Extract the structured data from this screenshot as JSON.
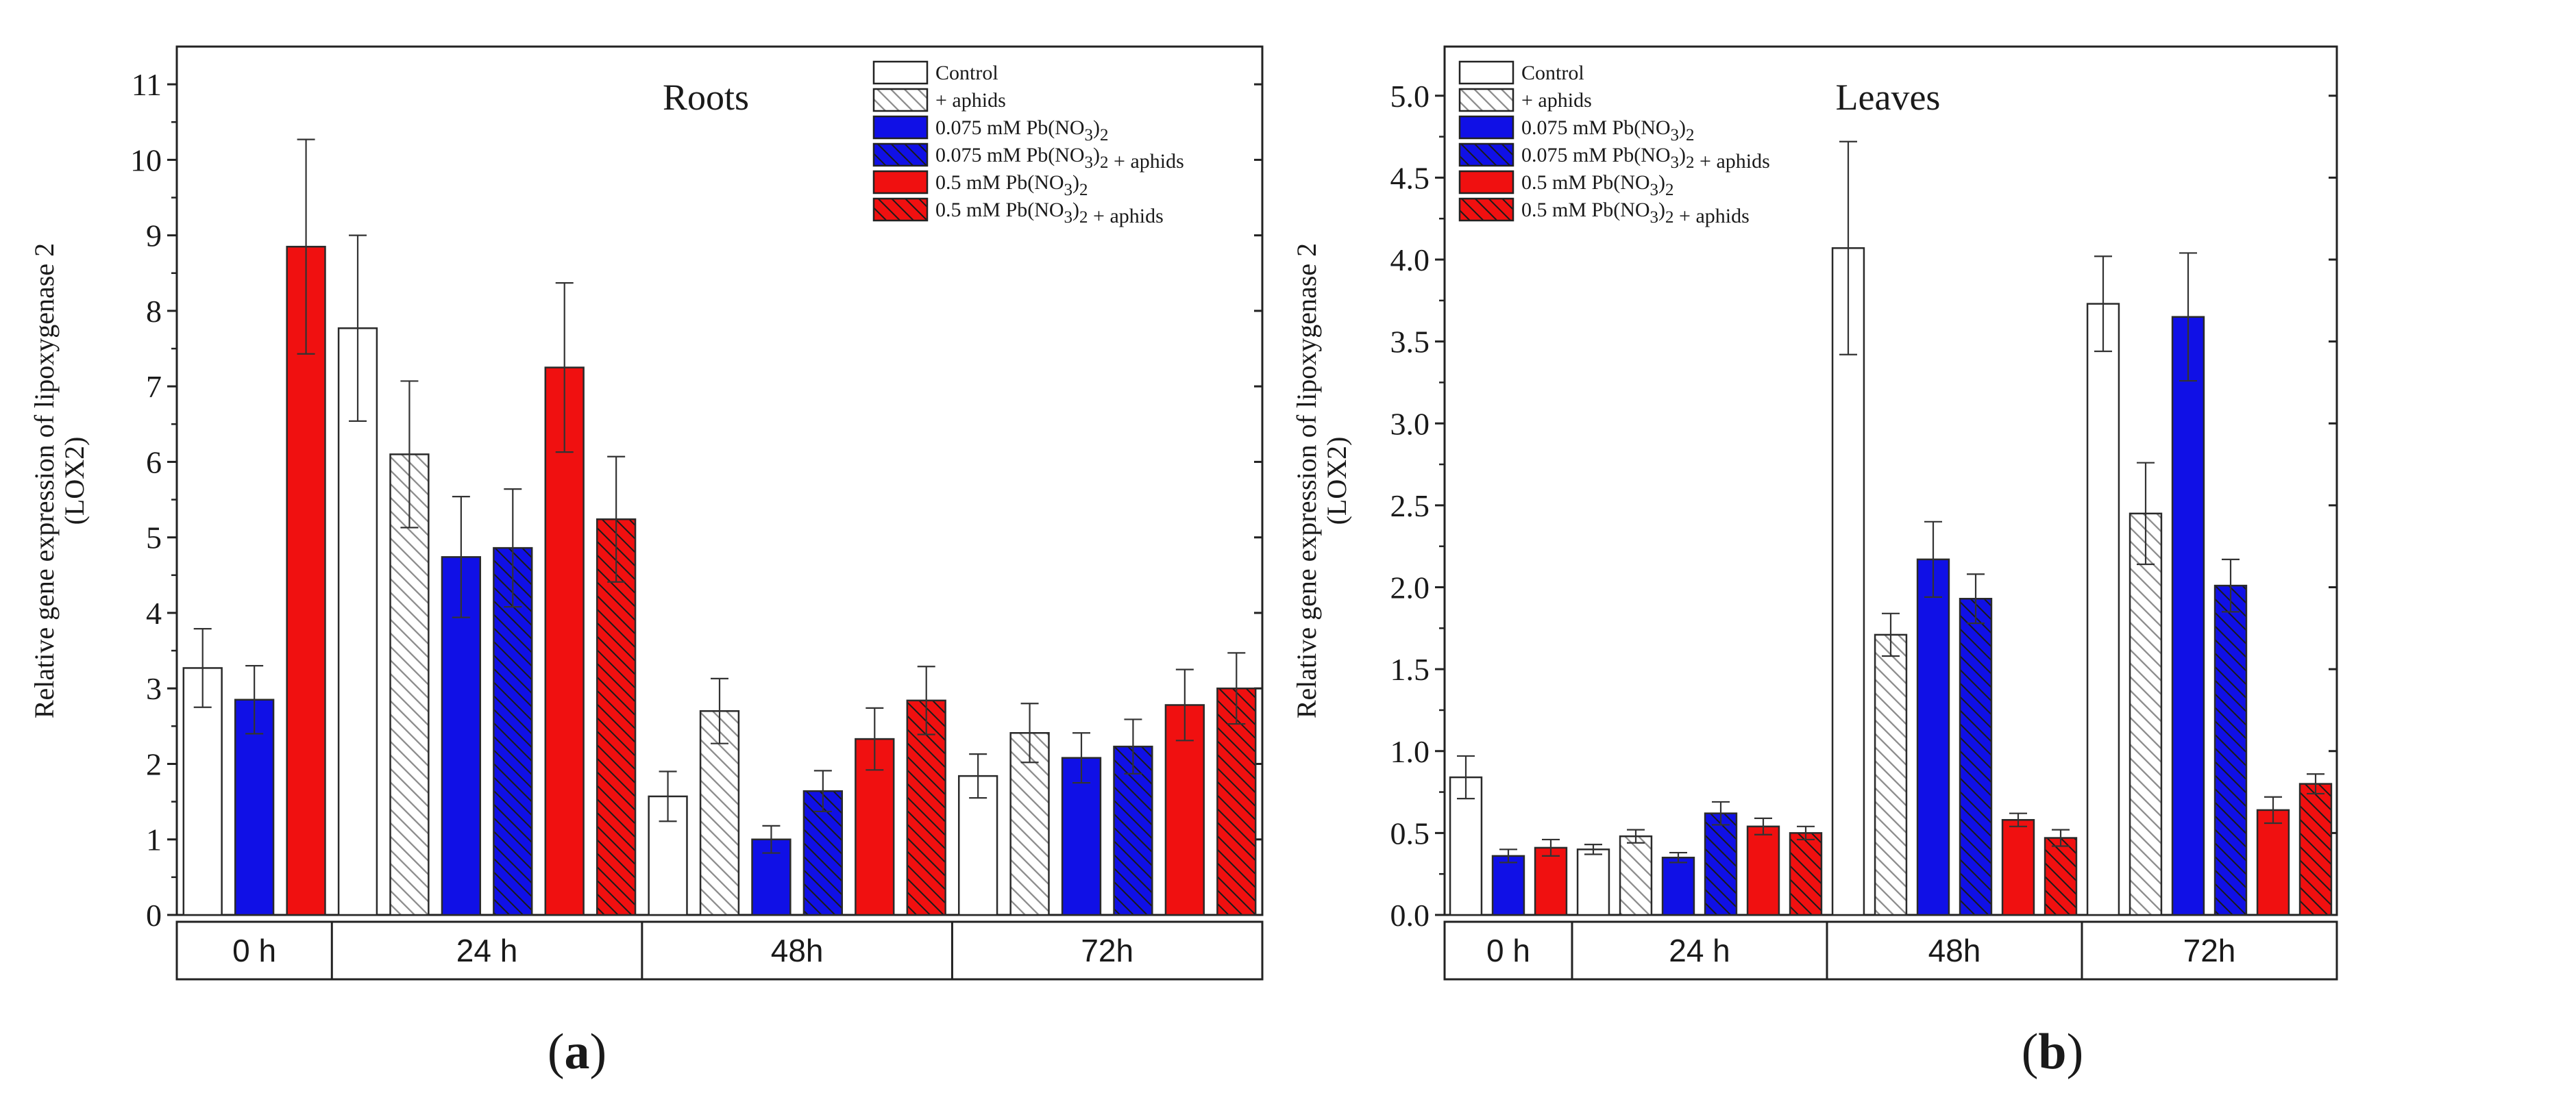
{
  "colors": {
    "control": "#ffffff",
    "blue": "#1010e6",
    "red": "#f01010",
    "outline": "#2a2a2a",
    "hatch_gray": "#8a8a8a",
    "hatch_dark": "#1a1a1a"
  },
  "legend": [
    {
      "label": "Control",
      "fill": "white",
      "hatched": false
    },
    {
      "label": "+ aphids",
      "fill": "white",
      "hatched": true
    },
    {
      "label": "0.075 mM Pb(NO3)2",
      "fill": "blue",
      "hatched": false
    },
    {
      "label": "0.075 mM Pb(NO3)2 + aphids",
      "fill": "blue",
      "hatched": true
    },
    {
      "label": "0.5 mM Pb(NO3)2",
      "fill": "red",
      "hatched": false
    },
    {
      "label": "0.5 mM Pb(NO3)2 + aphids",
      "fill": "red",
      "hatched": true
    }
  ],
  "chart_data": [
    {
      "type": "bar",
      "panel_label": "(a)",
      "title": "Roots",
      "ylabel_line1": "Relative gene expression of lipoxygenase 2",
      "ylabel_line2": "(LOX2)",
      "ylim": [
        0,
        11.5
      ],
      "yticks": [
        0,
        1,
        2,
        3,
        4,
        5,
        6,
        7,
        8,
        9,
        10,
        11
      ],
      "groups": [
        {
          "label": "0 h",
          "bars": [
            {
              "series": 0,
              "value": 3.27,
              "err": 0.52
            },
            {
              "series": 2,
              "value": 2.85,
              "err": 0.45
            },
            {
              "series": 4,
              "value": 8.85,
              "err": 1.42
            }
          ]
        },
        {
          "label": "24 h",
          "bars": [
            {
              "series": 0,
              "value": 7.77,
              "err": 1.23
            },
            {
              "series": 1,
              "value": 6.1,
              "err": 0.97
            },
            {
              "series": 2,
              "value": 4.74,
              "err": 0.8
            },
            {
              "series": 3,
              "value": 4.86,
              "err": 0.78
            },
            {
              "series": 4,
              "value": 7.25,
              "err": 1.12
            },
            {
              "series": 5,
              "value": 5.24,
              "err": 0.83
            }
          ]
        },
        {
          "label": "48h",
          "bars": [
            {
              "series": 0,
              "value": 1.57,
              "err": 0.33
            },
            {
              "series": 1,
              "value": 2.7,
              "err": 0.43
            },
            {
              "series": 2,
              "value": 1.0,
              "err": 0.18
            },
            {
              "series": 3,
              "value": 1.64,
              "err": 0.27
            },
            {
              "series": 4,
              "value": 2.33,
              "err": 0.41
            },
            {
              "series": 5,
              "value": 2.84,
              "err": 0.45
            }
          ]
        },
        {
          "label": "72h",
          "bars": [
            {
              "series": 0,
              "value": 1.84,
              "err": 0.29
            },
            {
              "series": 1,
              "value": 2.41,
              "err": 0.39
            },
            {
              "series": 2,
              "value": 2.08,
              "err": 0.33
            },
            {
              "series": 3,
              "value": 2.23,
              "err": 0.36
            },
            {
              "series": 4,
              "value": 2.78,
              "err": 0.47
            },
            {
              "series": 5,
              "value": 3.0,
              "err": 0.47
            }
          ]
        }
      ]
    },
    {
      "type": "bar",
      "panel_label": "(b)",
      "title": "Leaves",
      "ylabel_line1": "Relative gene expression of lipoxygenase 2",
      "ylabel_line2": "(LOX2)",
      "ylim": [
        0,
        5.3
      ],
      "yticks": [
        0.0,
        0.5,
        1.0,
        1.5,
        2.0,
        2.5,
        3.0,
        3.5,
        4.0,
        4.5,
        5.0
      ],
      "groups": [
        {
          "label": "0 h",
          "bars": [
            {
              "series": 0,
              "value": 0.84,
              "err": 0.13
            },
            {
              "series": 2,
              "value": 0.36,
              "err": 0.04
            },
            {
              "series": 4,
              "value": 0.41,
              "err": 0.05
            }
          ]
        },
        {
          "label": "24 h",
          "bars": [
            {
              "series": 0,
              "value": 0.4,
              "err": 0.03
            },
            {
              "series": 1,
              "value": 0.48,
              "err": 0.04
            },
            {
              "series": 2,
              "value": 0.35,
              "err": 0.03
            },
            {
              "series": 3,
              "value": 0.62,
              "err": 0.07
            },
            {
              "series": 4,
              "value": 0.54,
              "err": 0.05
            },
            {
              "series": 5,
              "value": 0.5,
              "err": 0.04
            }
          ]
        },
        {
          "label": "48h",
          "bars": [
            {
              "series": 0,
              "value": 4.07,
              "err": 0.65
            },
            {
              "series": 1,
              "value": 1.71,
              "err": 0.13
            },
            {
              "series": 2,
              "value": 2.17,
              "err": 0.23
            },
            {
              "series": 3,
              "value": 1.93,
              "err": 0.15
            },
            {
              "series": 4,
              "value": 0.58,
              "err": 0.04
            },
            {
              "series": 5,
              "value": 0.47,
              "err": 0.05
            }
          ]
        },
        {
          "label": "72h",
          "bars": [
            {
              "series": 0,
              "value": 3.73,
              "err": 0.29
            },
            {
              "series": 1,
              "value": 2.45,
              "err": 0.31
            },
            {
              "series": 2,
              "value": 3.65,
              "err": 0.39
            },
            {
              "series": 3,
              "value": 2.01,
              "err": 0.16
            },
            {
              "series": 4,
              "value": 0.64,
              "err": 0.08
            },
            {
              "series": 5,
              "value": 0.8,
              "err": 0.06
            }
          ]
        }
      ]
    }
  ]
}
